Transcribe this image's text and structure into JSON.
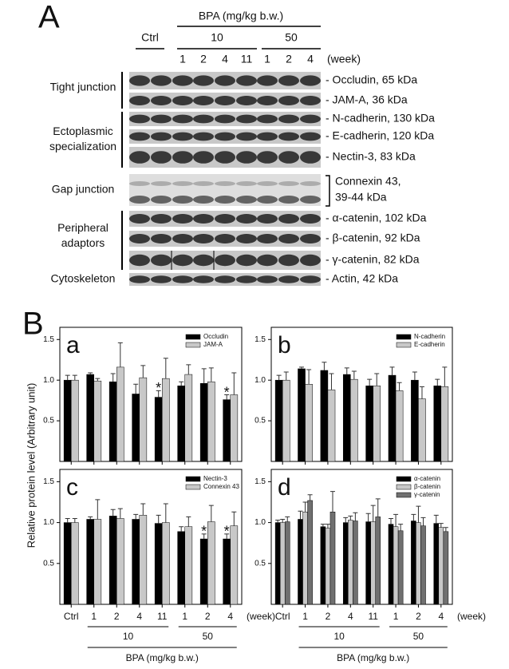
{
  "panel_a": {
    "label": "A",
    "header": "BPA (mg/kg b.w.)",
    "groups": [
      "Ctrl",
      "10",
      "50"
    ],
    "lanes": [
      "1",
      "2",
      "4",
      "11",
      "1",
      "2",
      "4"
    ],
    "unit": "(week)",
    "sections": [
      {
        "lines": [
          "Tight junction"
        ]
      },
      {
        "lines": [
          "Ectoplasmic",
          "specialization"
        ]
      },
      {
        "lines": [
          "Gap junction"
        ]
      },
      {
        "lines": [
          "Peripheral",
          "adaptors"
        ]
      },
      {
        "lines": [
          "Cytoskeleton"
        ]
      }
    ],
    "rows": [
      {
        "lines": [
          "- Occludin, 65 kDa"
        ]
      },
      {
        "lines": [
          "- JAM-A, 36 kDa"
        ]
      },
      {
        "lines": [
          "- N-cadherin, 130 kDa"
        ]
      },
      {
        "lines": [
          "- E-cadherin, 120 kDa"
        ]
      },
      {
        "lines": [
          "- Nectin-3, 83 kDa"
        ]
      },
      {
        "lines": [
          "Connexin 43,",
          "39-44 kDa"
        ]
      },
      {
        "lines": [
          "- α-catenin, 102 kDa"
        ]
      },
      {
        "lines": [
          "- β-catenin, 92 kDa"
        ]
      },
      {
        "lines": [
          "- γ-catenin, 82 kDa"
        ]
      },
      {
        "lines": [
          "- Actin, 42 kDa"
        ]
      }
    ]
  },
  "panel_b": {
    "label": "B",
    "ylabel": "Relative protein level (Arbitrary unit)",
    "xlabel": "BPA (mg/kg b.w.)",
    "x_unit": "(week)",
    "groups": [
      "10",
      "50"
    ]
  },
  "chart_data": [
    {
      "type": "bar",
      "panel": "a",
      "categories": [
        null,
        null,
        null,
        null,
        null,
        null,
        null,
        null
      ],
      "ylim": [
        0,
        1.65
      ],
      "yticks": [
        0.5,
        {
          "value": 1,
          "label": "1.0"
        },
        1.5
      ],
      "legend": "upper right",
      "series": [
        {
          "name": "Occludin",
          "color": "#000000",
          "values": [
            1.0,
            1.07,
            0.98,
            0.83,
            0.79,
            0.93,
            0.96,
            0.76
          ],
          "errors": [
            0.06,
            0.02,
            0.1,
            0.12,
            0.08,
            0.05,
            0.18,
            0.06
          ],
          "marks": [
            null,
            null,
            null,
            null,
            "*",
            null,
            null,
            "*"
          ]
        },
        {
          "name": "JAM-A",
          "color": "#c8c8c8",
          "values": [
            1.0,
            0.99,
            1.16,
            1.03,
            1.02,
            1.07,
            0.98,
            0.82
          ],
          "errors": [
            0.06,
            0.03,
            0.3,
            0.15,
            0.25,
            0.12,
            0.17,
            0.27
          ]
        }
      ]
    },
    {
      "type": "bar",
      "panel": "b",
      "categories": [
        null,
        null,
        null,
        null,
        null,
        null,
        null,
        null
      ],
      "ylim": [
        0,
        1.65
      ],
      "yticks": [
        0.5,
        {
          "value": 1,
          "label": "1.0"
        },
        1.5
      ],
      "legend": "upper right",
      "series": [
        {
          "name": "N-cadherin",
          "color": "#000000",
          "values": [
            1.0,
            1.14,
            1.12,
            1.07,
            0.93,
            1.06,
            1.0,
            0.93
          ],
          "errors": [
            0.06,
            0.02,
            0.1,
            0.08,
            0.08,
            0.1,
            0.1,
            0.08
          ]
        },
        {
          "name": "E-cadherin",
          "color": "#c8c8c8",
          "values": [
            1.0,
            0.95,
            0.88,
            1.01,
            0.93,
            0.87,
            0.77,
            0.92
          ],
          "errors": [
            0.1,
            0.18,
            0.2,
            0.1,
            0.15,
            0.1,
            0.15,
            0.24
          ]
        }
      ]
    },
    {
      "type": "bar",
      "panel": "c",
      "categories": [
        "Ctrl",
        "1",
        "2",
        "4",
        "11",
        "1",
        "2",
        "4"
      ],
      "ylim": [
        0,
        1.65
      ],
      "yticks": [
        0.5,
        {
          "value": 1,
          "label": "1.0"
        },
        1.5
      ],
      "legend": "upper right",
      "series": [
        {
          "name": "Nectin-3",
          "color": "#000000",
          "values": [
            1.0,
            1.04,
            1.08,
            1.04,
            0.99,
            0.89,
            0.8,
            0.8
          ],
          "errors": [
            0.05,
            0.03,
            0.08,
            0.06,
            0.1,
            0.06,
            0.06,
            0.06
          ],
          "marks": [
            null,
            null,
            null,
            null,
            null,
            null,
            "*",
            "*"
          ]
        },
        {
          "name": "Connexin 43",
          "color": "#c8c8c8",
          "values": [
            1.0,
            1.04,
            1.05,
            1.09,
            1.0,
            0.95,
            1.01,
            0.96
          ],
          "errors": [
            0.05,
            0.24,
            0.12,
            0.14,
            0.23,
            0.12,
            0.2,
            0.17
          ]
        }
      ]
    },
    {
      "type": "bar",
      "panel": "d",
      "categories": [
        "Ctrl",
        "1",
        "2",
        "4",
        "11",
        "1",
        "2",
        "4"
      ],
      "ylim": [
        0,
        1.65
      ],
      "yticks": [
        0.5,
        {
          "value": 1,
          "label": "1.0"
        },
        1.5
      ],
      "legend": "upper right",
      "series": [
        {
          "name": "α-catenin",
          "color": "#000000",
          "values": [
            1.0,
            1.04,
            0.95,
            1.0,
            1.01,
            0.98,
            1.02,
            0.99
          ],
          "errors": [
            0.03,
            0.1,
            0.03,
            0.06,
            0.1,
            0.07,
            0.08,
            0.1
          ]
        },
        {
          "name": "β-catenin",
          "color": "#c8c8c8",
          "values": [
            1.0,
            1.13,
            0.93,
            1.03,
            1.01,
            0.95,
            1.0,
            0.94
          ],
          "errors": [
            0.04,
            0.12,
            0.05,
            0.05,
            0.2,
            0.15,
            0.2,
            0.05
          ]
        },
        {
          "name": "γ-catenin",
          "color": "#707070",
          "values": [
            1.01,
            1.27,
            1.13,
            1.02,
            1.07,
            0.9,
            0.96,
            0.89
          ],
          "errors": [
            0.06,
            0.07,
            0.25,
            0.1,
            0.22,
            0.08,
            0.1,
            0.05
          ]
        }
      ]
    }
  ]
}
